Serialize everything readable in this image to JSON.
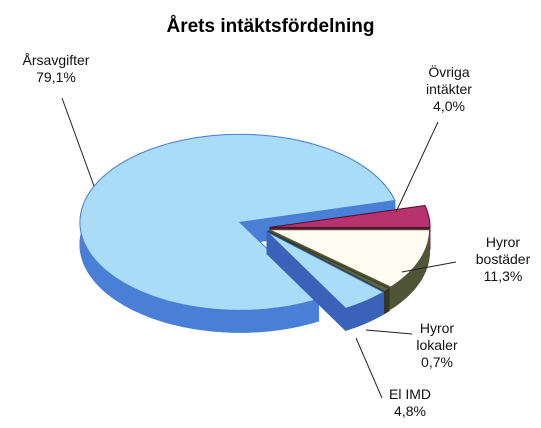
{
  "chart_data": {
    "type": "pie3d",
    "title": "Årets intäktsfördelning",
    "categories": [
      "Övriga intäkter",
      "Hyror bostäder",
      "Hyror lokaler",
      "El IMD",
      "Årsavgifter"
    ],
    "values": [
      4.0,
      11.3,
      0.7,
      4.8,
      79.1
    ],
    "value_labels": [
      "4,0%",
      "11,3%",
      "0,7%",
      "4,8%",
      "79,1%"
    ],
    "colors": [
      "#b8326e",
      "#fffdf2",
      "#5c6448",
      "#a9dcf6",
      "#a9dcf6"
    ],
    "edge_colors": [
      "#5a1030",
      "#4f5536",
      "#33381f",
      "#3a62b8",
      "#4a7fd6"
    ]
  }
}
